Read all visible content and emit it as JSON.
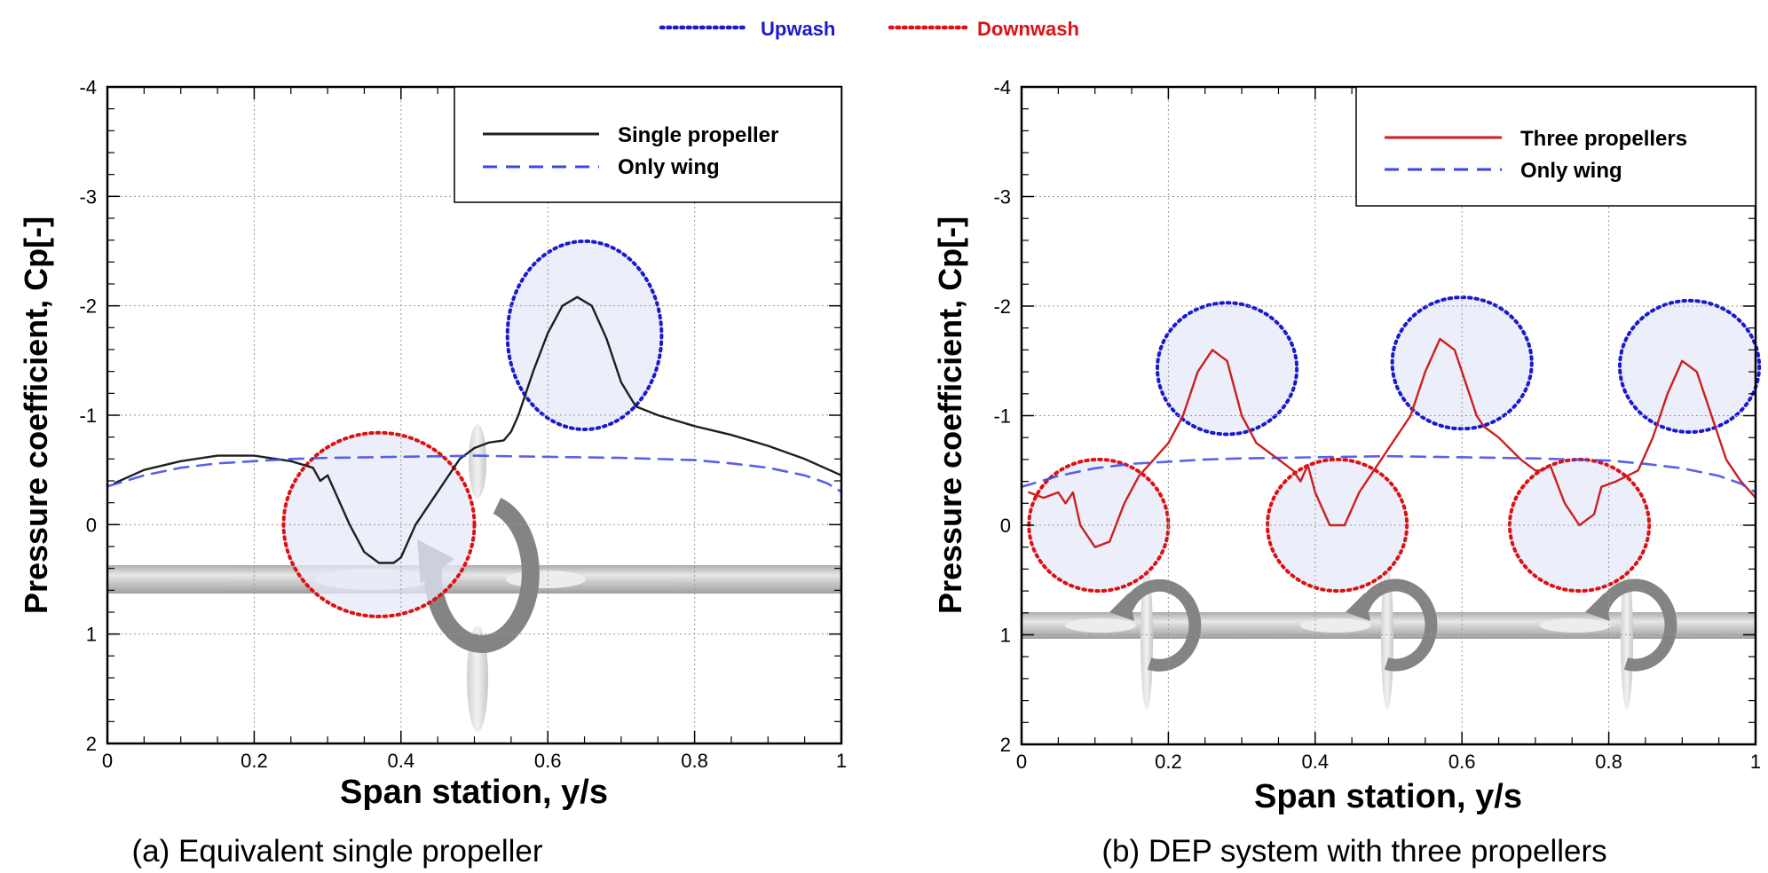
{
  "top_legend": {
    "upwash_label": "Upwash",
    "downwash_label": "Downwash",
    "upwash_color": "#1a1acc",
    "downwash_color": "#dd1111"
  },
  "colors": {
    "single_propeller": "#1f1f1f",
    "three_propellers": "#cc1f1f",
    "only_wing": "#3b45e6",
    "circle_fill": "#e6e8f8"
  },
  "chart_data": [
    {
      "type": "line",
      "caption": "(a) Equivalent single propeller",
      "xlabel": "Span station, y/s",
      "ylabel": "Pressure coefficient, Cp[-]",
      "xlim": [
        0,
        1
      ],
      "ylim": [
        2,
        -4
      ],
      "x_ticks": [
        0,
        0.2,
        0.4,
        0.6,
        0.8,
        1
      ],
      "x_tick_labels": [
        "0",
        "0.2",
        "0.4",
        "0.6",
        "0.8",
        "1"
      ],
      "y_ticks": [
        -4,
        -3,
        -2,
        -1,
        0,
        1,
        2
      ],
      "y_tick_labels": [
        "-4",
        "-3",
        "-2",
        "-1",
        "0",
        "1",
        "2"
      ],
      "grid": true,
      "legend_position": "top-right",
      "series": [
        {
          "name": "Single propeller",
          "style": "solid",
          "x": [
            0.01,
            0.05,
            0.1,
            0.15,
            0.2,
            0.25,
            0.28,
            0.29,
            0.3,
            0.31,
            0.33,
            0.35,
            0.37,
            0.39,
            0.4,
            0.42,
            0.45,
            0.48,
            0.5,
            0.52,
            0.54,
            0.55,
            0.56,
            0.58,
            0.6,
            0.62,
            0.64,
            0.66,
            0.68,
            0.7,
            0.72,
            0.75,
            0.8,
            0.85,
            0.9,
            0.95,
            1.0
          ],
          "y": [
            -0.38,
            -0.5,
            -0.58,
            -0.63,
            -0.63,
            -0.58,
            -0.52,
            -0.4,
            -0.45,
            -0.3,
            0.0,
            0.25,
            0.35,
            0.35,
            0.3,
            0.0,
            -0.3,
            -0.6,
            -0.7,
            -0.75,
            -0.77,
            -0.85,
            -1.0,
            -1.4,
            -1.75,
            -2.0,
            -2.08,
            -2.0,
            -1.7,
            -1.3,
            -1.08,
            -1.0,
            -0.9,
            -0.82,
            -0.72,
            -0.6,
            -0.45
          ]
        },
        {
          "name": "Only wing",
          "style": "dashed",
          "x": [
            0.0,
            0.05,
            0.1,
            0.15,
            0.2,
            0.25,
            0.3,
            0.4,
            0.5,
            0.6,
            0.7,
            0.8,
            0.85,
            0.9,
            0.95,
            0.98,
            1.0
          ],
          "y": [
            -0.35,
            -0.45,
            -0.52,
            -0.56,
            -0.58,
            -0.6,
            -0.61,
            -0.62,
            -0.63,
            -0.62,
            -0.61,
            -0.59,
            -0.56,
            -0.52,
            -0.45,
            -0.38,
            -0.3
          ]
        }
      ],
      "regions": [
        {
          "kind": "Upwash",
          "center": [
            0.65,
            -1.73
          ],
          "radius_x": 0.105,
          "radius_y_cp": 0.86
        },
        {
          "kind": "Downwash",
          "center": [
            0.37,
            0.0
          ],
          "radius_x": 0.13,
          "radius_y_cp": 0.84
        }
      ]
    },
    {
      "type": "line",
      "caption": "(b) DEP system with three propellers",
      "xlabel": "Span station, y/s",
      "ylabel": "Pressure coefficient, Cp[-]",
      "xlim": [
        0,
        1
      ],
      "ylim": [
        2,
        -4
      ],
      "x_ticks": [
        0,
        0.2,
        0.4,
        0.6,
        0.8,
        1
      ],
      "x_tick_labels": [
        "0",
        "0.2",
        "0.4",
        "0.6",
        "0.8",
        "1"
      ],
      "y_ticks": [
        -4,
        -3,
        -2,
        -1,
        0,
        1,
        2
      ],
      "y_tick_labels": [
        "-4",
        "-3",
        "-2",
        "-1",
        "0",
        "1",
        "2"
      ],
      "grid": true,
      "legend_position": "top-right",
      "series": [
        {
          "name": "Three propellers",
          "style": "solid",
          "x": [
            0.01,
            0.03,
            0.05,
            0.06,
            0.07,
            0.08,
            0.1,
            0.12,
            0.14,
            0.16,
            0.18,
            0.2,
            0.22,
            0.24,
            0.26,
            0.28,
            0.3,
            0.32,
            0.35,
            0.37,
            0.38,
            0.39,
            0.4,
            0.42,
            0.44,
            0.46,
            0.47,
            0.5,
            0.53,
            0.55,
            0.57,
            0.59,
            0.61,
            0.62,
            0.63,
            0.65,
            0.68,
            0.7,
            0.71,
            0.72,
            0.74,
            0.76,
            0.78,
            0.79,
            0.81,
            0.84,
            0.86,
            0.88,
            0.9,
            0.92,
            0.94,
            0.96,
            0.98,
            1.0
          ],
          "y": [
            -0.3,
            -0.25,
            -0.3,
            -0.2,
            -0.3,
            0.0,
            0.2,
            0.15,
            -0.2,
            -0.45,
            -0.6,
            -0.75,
            -1.0,
            -1.4,
            -1.6,
            -1.5,
            -1.0,
            -0.75,
            -0.6,
            -0.5,
            -0.4,
            -0.55,
            -0.3,
            0.0,
            0.0,
            -0.3,
            -0.4,
            -0.7,
            -1.0,
            -1.4,
            -1.7,
            -1.6,
            -1.2,
            -1.0,
            -0.9,
            -0.8,
            -0.6,
            -0.5,
            -0.5,
            -0.55,
            -0.2,
            0.0,
            -0.1,
            -0.35,
            -0.4,
            -0.5,
            -0.8,
            -1.2,
            -1.5,
            -1.4,
            -1.0,
            -0.6,
            -0.4,
            -0.25
          ]
        },
        {
          "name": "Only wing",
          "style": "dashed",
          "x": [
            0.0,
            0.05,
            0.1,
            0.15,
            0.2,
            0.25,
            0.3,
            0.4,
            0.5,
            0.6,
            0.7,
            0.8,
            0.85,
            0.9,
            0.95,
            0.98,
            1.0
          ],
          "y": [
            -0.35,
            -0.45,
            -0.52,
            -0.56,
            -0.58,
            -0.6,
            -0.61,
            -0.62,
            -0.63,
            -0.62,
            -0.61,
            -0.59,
            -0.56,
            -0.52,
            -0.45,
            -0.38,
            -0.3
          ]
        }
      ],
      "regions": [
        {
          "kind": "Upwash",
          "center": [
            0.28,
            -1.43
          ],
          "radius_x": 0.095,
          "radius_y_cp": 0.6
        },
        {
          "kind": "Upwash",
          "center": [
            0.6,
            -1.48
          ],
          "radius_x": 0.095,
          "radius_y_cp": 0.6
        },
        {
          "kind": "Upwash",
          "center": [
            0.91,
            -1.45
          ],
          "radius_x": 0.095,
          "radius_y_cp": 0.6
        },
        {
          "kind": "Downwash",
          "center": [
            0.105,
            0.0
          ],
          "radius_x": 0.095,
          "radius_y_cp": 0.6
        },
        {
          "kind": "Downwash",
          "center": [
            0.43,
            0.0
          ],
          "radius_x": 0.095,
          "radius_y_cp": 0.6
        },
        {
          "kind": "Downwash",
          "center": [
            0.76,
            0.0
          ],
          "radius_x": 0.095,
          "radius_y_cp": 0.6
        }
      ]
    }
  ]
}
